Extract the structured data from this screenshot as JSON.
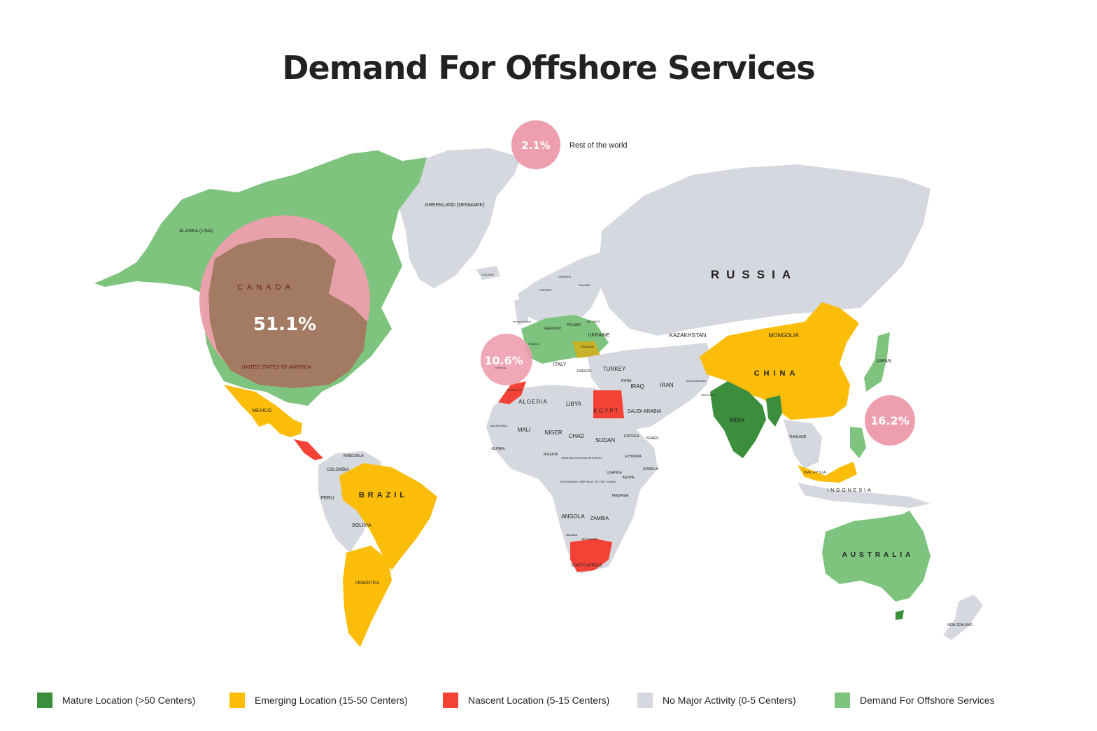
{
  "title": "Demand For Offshore Services",
  "colors": {
    "mature": "#3a8e3c",
    "emerging": "#fbbd08",
    "nascent": "#f44336",
    "no_activity": "#d5d8de",
    "demand": "#7ec47e",
    "bubble": "#ee9fae",
    "bubble_overlay": "#a37b63"
  },
  "bubbles": {
    "rest": {
      "value": "2.1%",
      "label": "Rest of the world"
    },
    "americas": {
      "value": "51.1%"
    },
    "europe": {
      "value": "10.6%"
    },
    "apac": {
      "value": "16.2%"
    }
  },
  "labels": {
    "canada": "CANADA",
    "usa": "UNITED STATES OF AMERICA",
    "alaska": "ALASKA (USA)",
    "greenland": "GREENLAND (DENMARK)",
    "russia": "RUSSIA",
    "china": "CHINA",
    "india": "INDIA",
    "mongolia": "MONGOLIA",
    "kazakhstan": "KAZAKHSTAN",
    "japan": "JAPAN",
    "iran": "IRAN",
    "iraq": "IRAQ",
    "turkey": "TURKEY",
    "saudi": "SAUDI ARABIA",
    "egypt": "EGYPT",
    "libya": "LIBYA",
    "algeria": "ALGERIA",
    "mali": "MALI",
    "niger": "NIGER",
    "chad": "CHAD",
    "sudan": "SUDAN",
    "angola": "ANGOLA",
    "zambia": "ZAMBIA",
    "south_africa": "SOUTH AFRICA",
    "brazil": "BRAZIL",
    "peru": "PERU",
    "bolivia": "BOLIVIA",
    "argentina": "ARGENTINA",
    "colombia": "COLOMBIA",
    "mexico": "MEXICO",
    "australia": "AUSTRALIA",
    "indonesia": "INDONESIA",
    "new_zealand": "NEW ZEALAND",
    "ukraine": "UKRAINE",
    "poland": "POLAND",
    "germany": "GERMANY",
    "france": "FRANCE",
    "italy": "ITALY",
    "romania": "ROMANIA",
    "greece": "GREECE",
    "morocco": "MOROCCO",
    "malaysia": "MALAYSIA",
    "thailand": "THAILAND",
    "pakistan": "PAKISTAN",
    "afghanistan": "AFGHANISTAN",
    "syria": "SYRIA",
    "iceland": "ICELAND",
    "norway": "NORWAY",
    "sweden": "SWEDEN",
    "finland": "FINLAND",
    "belarus": "BELARUS",
    "uk": "UNITED KINGDOM",
    "portugal": "PORTUGAL",
    "venezuela": "VENEZUELA",
    "nigeria": "NIGERIA",
    "ethiopia": "ETHIOPIA",
    "drc": "DEMOCRATIC REPUBLIC OF THE CONGO",
    "car": "CENTRAL AFRICAN REPUBLIC",
    "uganda": "UGANDA",
    "kenya": "KENYA",
    "tanzania": "TANZANIA",
    "somalia": "SOMALIA",
    "yemen": "YEMEN",
    "eritrea": "ERITREA",
    "namibia": "NAMIBIA",
    "botswana": "BOTSWANA",
    "guinea": "GUINEA",
    "mauritania": "MAURITANIA"
  },
  "legend": [
    {
      "label": "Mature Location (>50 Centers)",
      "color": "#3a8e3c"
    },
    {
      "label": "Emerging Location (15-50 Centers)",
      "color": "#fbbd08"
    },
    {
      "label": "Nascent Location (5-15 Centers)",
      "color": "#f44336"
    },
    {
      "label": "No Major Activity (0-5 Centers)",
      "color": "#d5d8de"
    },
    {
      "label": "Demand For Offshore Services",
      "color": "#7ec47e"
    }
  ]
}
